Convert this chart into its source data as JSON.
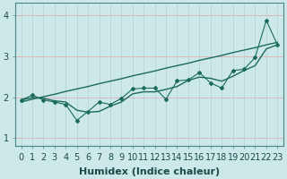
{
  "title": "",
  "xlabel": "Humidex (Indice chaleur)",
  "ylabel": "",
  "bg_color": "#cce8e8",
  "line_color": "#1a6b5a",
  "grid_h_color": "#ddb8b8",
  "grid_v_color": "#b8d8d8",
  "xlim": [
    -0.5,
    23.5
  ],
  "ylim": [
    0.8,
    4.3
  ],
  "yticks": [
    1,
    2,
    3,
    4
  ],
  "xticks": [
    0,
    1,
    2,
    3,
    4,
    5,
    6,
    7,
    8,
    9,
    10,
    11,
    12,
    13,
    14,
    15,
    16,
    17,
    18,
    19,
    20,
    21,
    22,
    23
  ],
  "x": [
    0,
    1,
    2,
    3,
    4,
    5,
    6,
    7,
    8,
    9,
    10,
    11,
    12,
    13,
    14,
    15,
    16,
    17,
    18,
    19,
    20,
    21,
    22,
    23
  ],
  "y_zigzag": [
    1.93,
    2.05,
    1.93,
    1.88,
    1.82,
    1.43,
    1.65,
    1.88,
    1.82,
    1.97,
    2.2,
    2.22,
    2.22,
    1.95,
    2.4,
    2.42,
    2.6,
    2.35,
    2.22,
    2.65,
    2.68,
    2.97,
    3.88,
    3.28
  ],
  "y_linear": [
    1.88,
    1.95,
    2.01,
    2.07,
    2.14,
    2.2,
    2.26,
    2.33,
    2.39,
    2.45,
    2.52,
    2.58,
    2.64,
    2.71,
    2.77,
    2.83,
    2.9,
    2.96,
    3.02,
    3.09,
    3.15,
    3.21,
    3.28,
    3.34
  ],
  "y_smooth": [
    1.93,
    1.99,
    1.97,
    1.91,
    1.88,
    1.68,
    1.63,
    1.65,
    1.78,
    1.88,
    2.08,
    2.13,
    2.13,
    2.19,
    2.26,
    2.41,
    2.49,
    2.46,
    2.39,
    2.51,
    2.65,
    2.77,
    3.18,
    3.28
  ],
  "xlabel_fontsize": 8,
  "tick_fontsize": 7
}
